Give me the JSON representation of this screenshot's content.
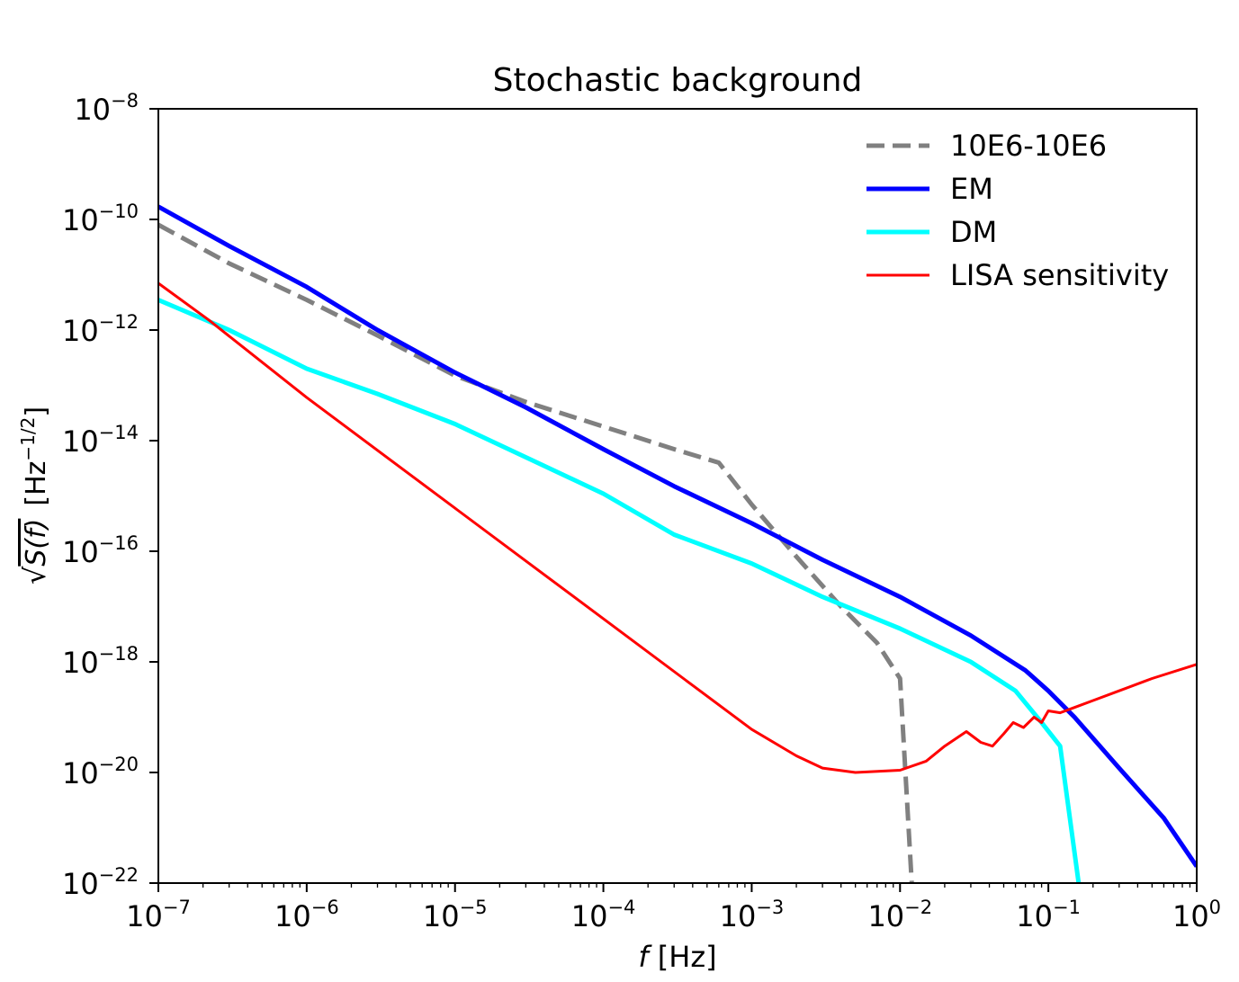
{
  "chart_data": {
    "type": "line",
    "title": "Stochastic background",
    "xlabel": {
      "prefix": "f",
      "suffix": " [Hz]"
    },
    "ylabel": {
      "root_expr": "S(f)",
      "unit_base": "[Hz",
      "unit_exp": "−1/2",
      "unit_close": "]"
    },
    "xscale": "log",
    "yscale": "log",
    "xlim": [
      1e-07,
      1
    ],
    "ylim": [
      1e-22,
      1e-08
    ],
    "grid": false,
    "legend_position": "top-right",
    "x_ticks": [
      {
        "value": 1e-07,
        "base": "10",
        "exp": "−7"
      },
      {
        "value": 1e-06,
        "base": "10",
        "exp": "−6"
      },
      {
        "value": 1e-05,
        "base": "10",
        "exp": "−5"
      },
      {
        "value": 0.0001,
        "base": "10",
        "exp": "−4"
      },
      {
        "value": 0.001,
        "base": "10",
        "exp": "−3"
      },
      {
        "value": 0.01,
        "base": "10",
        "exp": "−2"
      },
      {
        "value": 0.1,
        "base": "10",
        "exp": "−1"
      },
      {
        "value": 1,
        "base": "10",
        "exp": "0"
      }
    ],
    "y_ticks": [
      {
        "value": 1e-08,
        "base": "10",
        "exp": "−8"
      },
      {
        "value": 1e-10,
        "base": "10",
        "exp": "−10"
      },
      {
        "value": 1e-12,
        "base": "10",
        "exp": "−12"
      },
      {
        "value": 1e-14,
        "base": "10",
        "exp": "−14"
      },
      {
        "value": 1e-16,
        "base": "10",
        "exp": "−16"
      },
      {
        "value": 1e-18,
        "base": "10",
        "exp": "−18"
      },
      {
        "value": 1e-20,
        "base": "10",
        "exp": "−20"
      },
      {
        "value": 1e-22,
        "base": "10",
        "exp": "−22"
      }
    ],
    "series": [
      {
        "name": "10E6-10E6",
        "color": "#808080",
        "dash": "dashed",
        "x": [
          1e-07,
          3e-07,
          1e-06,
          3e-06,
          1e-05,
          3e-05,
          0.0001,
          0.0003,
          0.0006,
          0.001,
          0.002,
          0.004,
          0.007,
          0.01,
          0.012
        ],
        "y": [
          8e-11,
          1.6e-11,
          3.5e-12,
          8e-13,
          1.5e-13,
          5e-14,
          1.8e-14,
          7e-15,
          4e-15,
          7e-16,
          8e-17,
          1e-17,
          2.2e-18,
          5e-19,
          1e-22
        ]
      },
      {
        "name": "EM",
        "color": "#0000ff",
        "dash": "solid",
        "x": [
          1e-07,
          3e-07,
          1e-06,
          3e-06,
          1e-05,
          3e-05,
          0.0001,
          0.0003,
          0.001,
          0.003,
          0.01,
          0.03,
          0.07,
          0.1,
          0.15,
          0.3,
          0.6,
          1
        ],
        "y": [
          1.7e-10,
          3.3e-11,
          6e-12,
          1e-12,
          1.7e-13,
          4e-14,
          7e-15,
          1.5e-15,
          3.2e-16,
          7e-17,
          1.5e-17,
          3e-18,
          7e-19,
          3e-19,
          1e-19,
          1.2e-20,
          1.5e-21,
          2e-22
        ]
      },
      {
        "name": "DM",
        "color": "#00ffff",
        "dash": "solid",
        "x": [
          1e-07,
          3e-07,
          1e-06,
          3e-06,
          1e-05,
          3e-05,
          0.0001,
          0.0003,
          0.001,
          0.003,
          0.01,
          0.03,
          0.06,
          0.09,
          0.12,
          0.16
        ],
        "y": [
          3.5e-12,
          1e-12,
          2e-13,
          7e-14,
          2e-14,
          5e-15,
          1.1e-15,
          2e-16,
          6e-17,
          1.5e-17,
          4e-18,
          1e-18,
          3e-19,
          8e-20,
          3e-20,
          1e-22
        ]
      },
      {
        "name": "LISA sensitivity",
        "color": "#ff0000",
        "dash": "solid",
        "x": [
          1e-07,
          2.2e-07,
          1e-06,
          1e-05,
          0.0001,
          0.001,
          0.002,
          0.003,
          0.005,
          0.01,
          0.015,
          0.02,
          0.028,
          0.035,
          0.042,
          0.05,
          0.058,
          0.068,
          0.08,
          0.09,
          0.1,
          0.12,
          0.15,
          0.2,
          0.3,
          0.5,
          1
        ],
        "y": [
          7e-12,
          1.5e-12,
          6e-14,
          6e-16,
          6e-18,
          6e-20,
          2e-20,
          1.2e-20,
          1e-20,
          1.1e-20,
          1.6e-20,
          3e-20,
          5.5e-20,
          3.5e-20,
          3e-20,
          5e-20,
          8e-20,
          6.5e-20,
          1e-19,
          8e-20,
          1.3e-19,
          1.2e-19,
          1.5e-19,
          2e-19,
          3e-19,
          5e-19,
          9e-19
        ]
      }
    ]
  }
}
